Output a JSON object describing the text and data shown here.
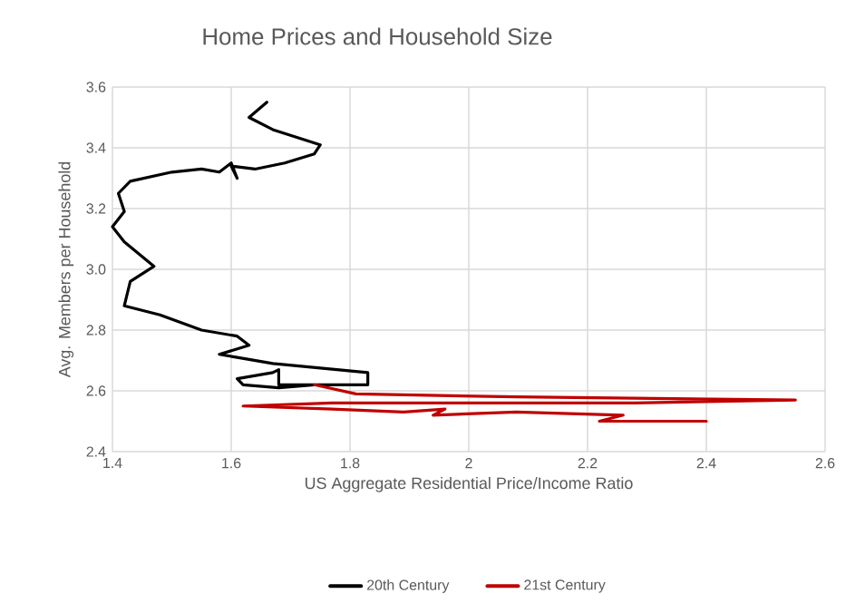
{
  "chart_data": {
    "type": "line",
    "title": "Home Prices and Household Size",
    "xlabel": "US Aggregate Residential Price/Income Ratio",
    "ylabel": "Avg. Members per Household",
    "xlim": [
      1.4,
      2.6
    ],
    "xticks": [
      1.4,
      1.6,
      1.8,
      2,
      2.2,
      2.4,
      2.6
    ],
    "ylim": [
      2.4,
      3.6
    ],
    "yticks": [
      {
        "value": 2.4,
        "label": "2.4"
      },
      {
        "value": 2.6,
        "label": "2.6"
      },
      {
        "value": 2.8,
        "label": "2.8"
      },
      {
        "value": 3.0,
        "label": "3.0"
      },
      {
        "value": 3.2,
        "label": "3.2"
      },
      {
        "value": 3.4,
        "label": "3.4"
      },
      {
        "value": 3.6,
        "label": "3.6"
      }
    ],
    "grid": true,
    "legend": "bottom",
    "marker": "none",
    "line_style": "solid",
    "series": [
      {
        "name": "20th Century",
        "color": "#000000",
        "x": [
          1.66,
          1.63,
          1.67,
          1.75,
          1.74,
          1.69,
          1.64,
          1.6,
          1.61,
          1.6,
          1.58,
          1.55,
          1.5,
          1.43,
          1.41,
          1.42,
          1.4,
          1.42,
          1.47,
          1.43,
          1.42,
          1.48,
          1.55,
          1.61,
          1.63,
          1.58,
          1.61,
          1.67,
          1.83,
          1.83,
          1.74,
          1.68,
          1.62,
          1.61,
          1.67,
          1.68,
          1.68,
          1.74
        ],
        "values": [
          3.55,
          3.5,
          3.46,
          3.41,
          3.38,
          3.35,
          3.33,
          3.34,
          3.3,
          3.35,
          3.32,
          3.33,
          3.32,
          3.29,
          3.25,
          3.19,
          3.14,
          3.09,
          3.01,
          2.96,
          2.88,
          2.85,
          2.8,
          2.78,
          2.75,
          2.72,
          2.71,
          2.69,
          2.66,
          2.62,
          2.62,
          2.61,
          2.62,
          2.64,
          2.66,
          2.67,
          2.62,
          2.62
        ]
      },
      {
        "name": "21st Century",
        "color": "#c00000",
        "x": [
          1.74,
          1.81,
          2.08,
          2.55,
          2.28,
          1.97,
          1.77,
          1.62,
          1.77,
          1.89,
          1.96,
          1.94,
          2.08,
          2.26,
          2.22,
          2.4
        ],
        "values": [
          2.62,
          2.59,
          2.58,
          2.57,
          2.56,
          2.56,
          2.56,
          2.55,
          2.54,
          2.53,
          2.54,
          2.52,
          2.53,
          2.52,
          2.5,
          2.5
        ]
      }
    ]
  }
}
